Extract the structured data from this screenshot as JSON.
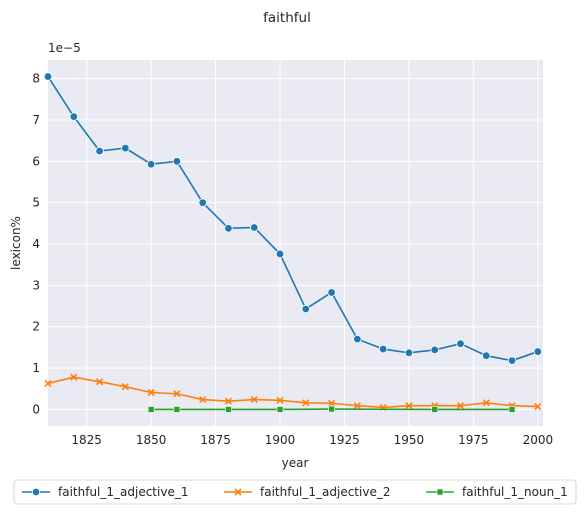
{
  "chart_data": {
    "type": "line",
    "title": "faithful",
    "xlabel": "year",
    "ylabel": "lexicon%",
    "y_scale_label": "1e−5",
    "xlim": [
      1810,
      2002
    ],
    "ylim": [
      -0.4,
      8.45
    ],
    "x_ticks": [
      1825,
      1850,
      1875,
      1900,
      1925,
      1950,
      1975,
      2000
    ],
    "y_ticks": [
      0,
      1,
      2,
      3,
      4,
      5,
      6,
      7,
      8
    ],
    "grid": true,
    "background": "#eaeaf2",
    "legend_position": "bottom",
    "series": [
      {
        "name": "faithful_1_adjective_1",
        "color": "#1f77b4",
        "marker": "circle",
        "x": [
          1810,
          1820,
          1830,
          1840,
          1850,
          1860,
          1870,
          1880,
          1890,
          1900,
          1910,
          1920,
          1930,
          1940,
          1950,
          1960,
          1970,
          1980,
          1990,
          2000
        ],
        "values": [
          8.05,
          7.08,
          6.25,
          6.32,
          5.93,
          6.0,
          5.0,
          4.38,
          4.4,
          3.76,
          2.43,
          2.83,
          1.7,
          1.46,
          1.37,
          1.44,
          1.59,
          1.3,
          1.18,
          1.4
        ]
      },
      {
        "name": "faithful_1_adjective_2",
        "color": "#ff7f0e",
        "marker": "x",
        "x": [
          1810,
          1820,
          1830,
          1840,
          1850,
          1860,
          1870,
          1880,
          1890,
          1900,
          1910,
          1920,
          1930,
          1940,
          1950,
          1960,
          1970,
          1980,
          1990,
          2000
        ],
        "values": [
          0.63,
          0.78,
          0.67,
          0.55,
          0.41,
          0.38,
          0.24,
          0.2,
          0.24,
          0.22,
          0.16,
          0.15,
          0.09,
          0.05,
          0.09,
          0.09,
          0.09,
          0.16,
          0.09,
          0.07
        ]
      },
      {
        "name": "faithful_1_noun_1",
        "color": "#2ca02c",
        "marker": "square",
        "x": [
          1850,
          1860,
          1880,
          1900,
          1920,
          1960,
          1990
        ],
        "values": [
          0.0,
          0.0,
          0.0,
          0.0,
          0.01,
          0.0,
          0.0
        ]
      }
    ]
  }
}
